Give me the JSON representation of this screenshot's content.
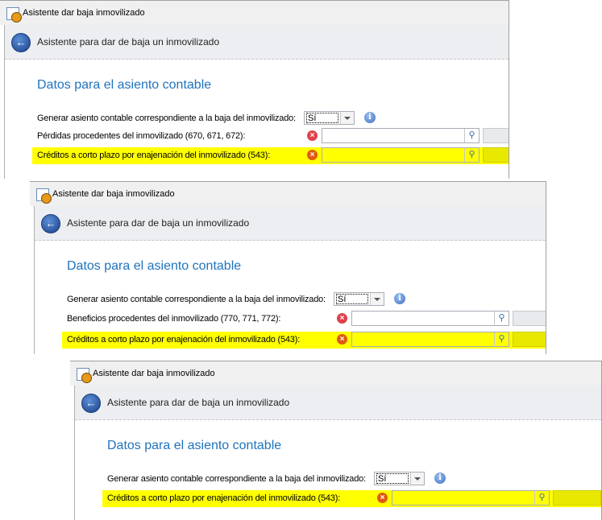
{
  "panels": [
    {
      "window_title": "Asistente dar baja inmovilizado",
      "header": "Asistente para dar de baja un inmovilizado",
      "section_title": "Datos para el asiento contable",
      "generate_label": "Generar asiento contable correspondiente a la baja del inmovilizado:",
      "generate_value": "Sí",
      "rows": [
        {
          "label": "Pérdidas procedentes del inmovilizado (670, 671, 672):",
          "value": "",
          "highlighted": false
        },
        {
          "label": "Créditos a corto plazo por enajenación del inmovilizado (543):",
          "value": "",
          "highlighted": true
        }
      ]
    },
    {
      "window_title": "Asistente dar baja inmovilizado",
      "header": "Asistente para dar de baja un inmovilizado",
      "section_title": "Datos para el asiento contable",
      "generate_label": "Generar asiento contable correspondiente a la baja del inmovilizado:",
      "generate_value": "Sí",
      "rows": [
        {
          "label": "Beneficios procedentes del inmovilizado (770, 771, 772):",
          "value": "",
          "highlighted": false
        },
        {
          "label": "Créditos a corto plazo por enajenación del inmovilizado (543):",
          "value": "",
          "highlighted": true
        }
      ]
    },
    {
      "window_title": "Asistente dar baja inmovilizado",
      "header": "Asistente para dar de baja un inmovilizado",
      "section_title": "Datos para el asiento contable",
      "generate_label": "Generar asiento contable correspondiente a la baja del inmovilizado:",
      "generate_value": "Sí",
      "rows": [
        {
          "label": "Créditos a corto plazo por enajenación del inmovilizado (543):",
          "value": "",
          "highlighted": true
        }
      ]
    }
  ],
  "colors": {
    "highlight": "#ffff00",
    "heading": "#1f73bd",
    "error": "#e0404a"
  },
  "icons": {
    "app": "wizard-clock-icon",
    "back": "back-arrow-icon",
    "info": "info-icon",
    "error": "error-icon",
    "search": "search-icon",
    "dropdown": "chevron-down-icon"
  }
}
